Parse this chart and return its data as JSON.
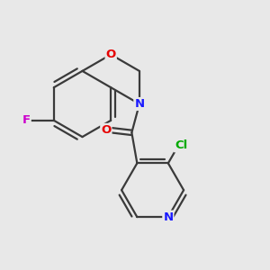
{
  "background_color": "#e8e8e8",
  "bond_color": "#3a3a3a",
  "atom_colors": {
    "O": "#e60000",
    "N": "#1a1aff",
    "F": "#cc00cc",
    "Cl": "#00aa00"
  },
  "figsize": [
    3.0,
    3.0
  ],
  "dpi": 100
}
